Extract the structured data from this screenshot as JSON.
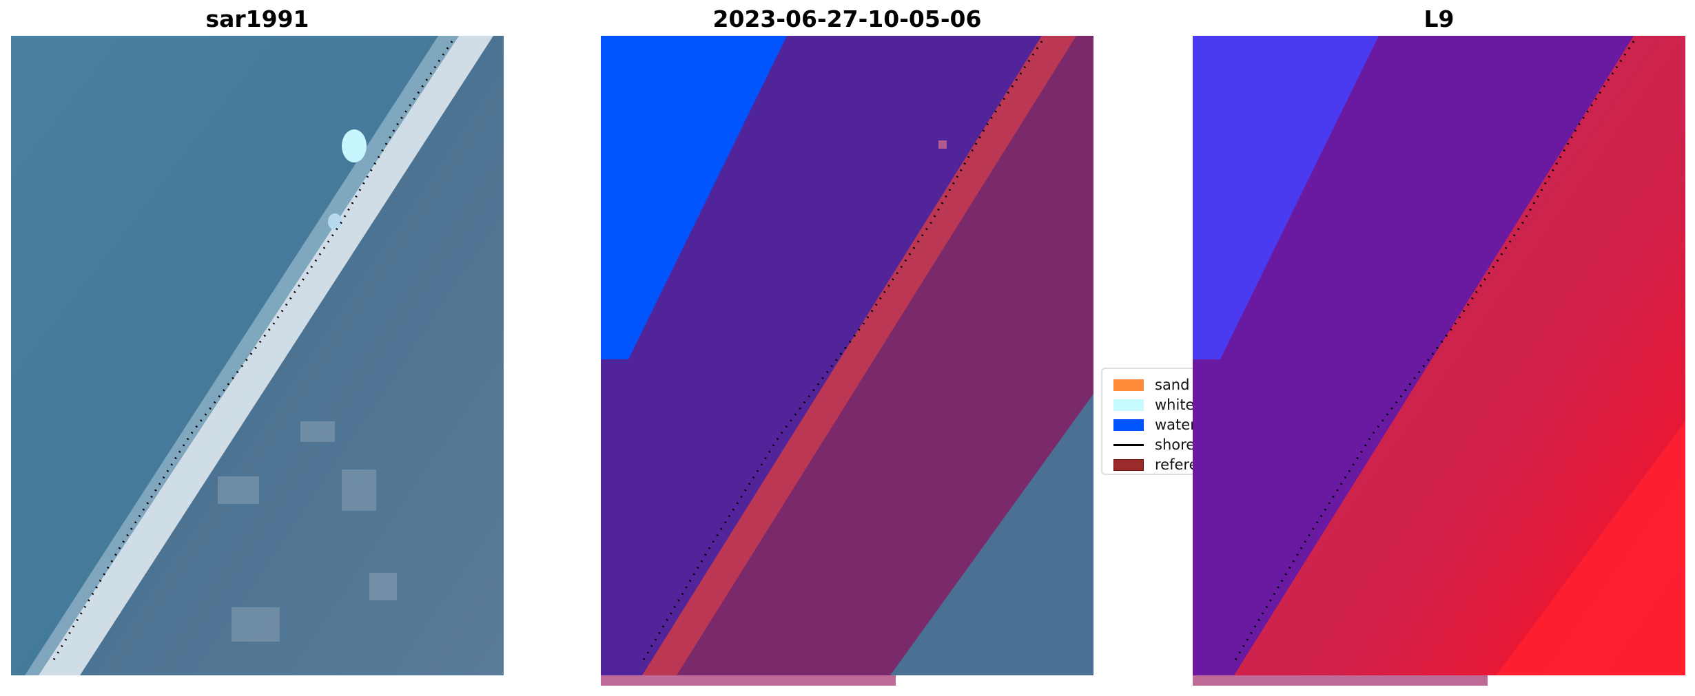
{
  "panels": [
    {
      "title": "sar1991"
    },
    {
      "title": "2023-06-27-10-05-06"
    },
    {
      "title": "L9"
    }
  ],
  "legend": {
    "items": [
      {
        "label": "sand",
        "color": "#ff8c3a",
        "kind": "patch"
      },
      {
        "label": "whitew",
        "color": "#c8fbff",
        "kind": "patch"
      },
      {
        "label": "water",
        "color": "#0055ff",
        "kind": "patch"
      },
      {
        "label": "shoreli",
        "color": "#000000",
        "kind": "line"
      },
      {
        "label": "referen",
        "color": "#9b2a2a",
        "kind": "patch"
      }
    ]
  },
  "colors": {
    "water": "#0055ff",
    "land_overlay": "#7a2a6a",
    "sea_class": "#52249a",
    "reference": "#c83a50"
  }
}
